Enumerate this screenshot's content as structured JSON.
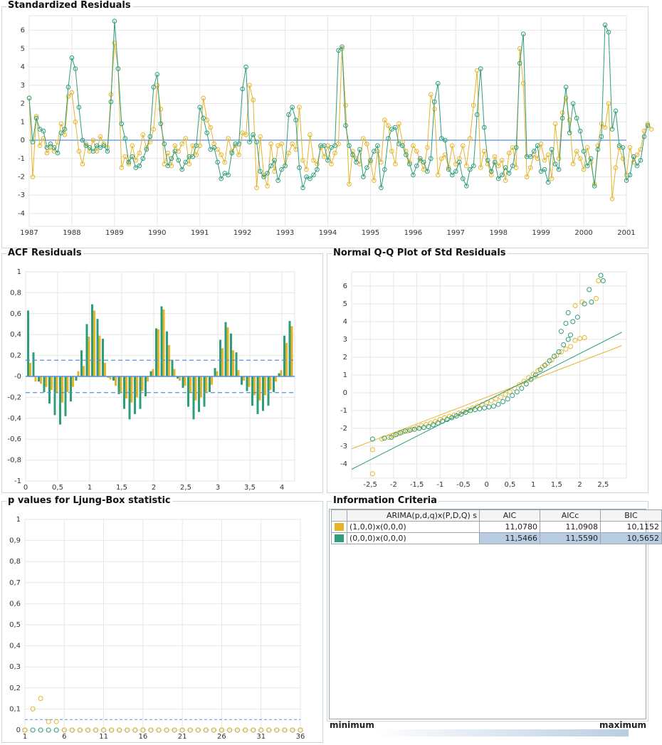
{
  "colors": {
    "model1": "#e6b32a",
    "model2": "#2e9d7a",
    "zero_line": "#5b8fd6",
    "band": "#5b8fd6",
    "highlight": "#b8cde2"
  },
  "chart_data": [
    {
      "type": "line",
      "title": "Standardized Residuals",
      "xlim": [
        1987,
        2001
      ],
      "ylim": [
        -4.7,
        6.8
      ],
      "x_ticks": [
        1987,
        1988,
        1989,
        1990,
        1991,
        1992,
        1993,
        1994,
        1995,
        1996,
        1997,
        1998,
        1999,
        2000,
        2001
      ],
      "y_ticks": [
        -4,
        -3,
        -2,
        -1,
        0,
        1,
        2,
        3,
        4,
        5,
        6
      ],
      "start": 1987.0,
      "step": 0.083333,
      "series": [
        {
          "values": [
            2.3,
            -2.0,
            1.3,
            -0.3,
            0.1,
            -0.7,
            -0.4,
            -0.6,
            -0.1,
            0.9,
            0.3,
            2.4,
            2.6,
            1.0,
            -0.6,
            -1.3,
            -0.2,
            -0.6,
            0.0,
            -0.6,
            0.2,
            -0.2,
            -0.4,
            2.5,
            5.3,
            3.9,
            -1.5,
            -0.9,
            -1.3,
            -0.3,
            -1.1,
            -0.7,
            0.3,
            -0.4,
            -0.1,
            0.6,
            3.0,
            1.7,
            -1.3,
            -0.7,
            -1.4,
            -0.3,
            -0.6,
            -0.2,
            0.1,
            -1.3,
            -0.3,
            -0.8,
            -0.3,
            2.3,
            1.1,
            0.7,
            -0.2,
            -0.5,
            -0.8,
            -1.2,
            0.1,
            -0.6,
            -0.3,
            -0.8,
            0.4,
            0.3,
            3.0,
            2.2,
            -2.6,
            0.2,
            -1.9,
            -2.5,
            -0.2,
            -1.7,
            -0.3,
            -0.2,
            -1.4,
            -0.7,
            -0.2,
            -0.5,
            1.8,
            -1.1,
            -1.6,
            0.3,
            -1.1,
            -1.3,
            -0.4,
            -0.9,
            -0.3,
            -1.3,
            -0.7,
            -0.2,
            5.0,
            1.9,
            -2.4,
            -0.6,
            -1.0,
            -1.3,
            0.1,
            -0.2,
            -1.2,
            -2.2,
            -0.6,
            -1.2,
            1.1,
            0.8,
            -0.6,
            -1.3,
            0.9,
            -0.1,
            -0.6,
            -1.2,
            -0.3,
            -0.6,
            -1.1,
            -1.6,
            -0.4,
            2.5,
            1.7,
            -1.9,
            -1.0,
            -0.8,
            -1.5,
            -0.3,
            -1.3,
            -1.0,
            -0.3,
            -1.4,
            0.1,
            1.9,
            3.8,
            -1.5,
            -0.6,
            -1.3,
            -1.9,
            -0.9,
            -1.4,
            -1.1,
            -2.2,
            -0.7,
            -0.4,
            -1.5,
            5.0,
            3.1,
            -2.0,
            -1.5,
            -0.8,
            -1.0,
            -0.2,
            -1.1,
            -0.8,
            -2.1,
            0.9,
            -1.0,
            1.5,
            2.3,
            1.1,
            -1.3,
            -0.6,
            -1.0,
            -1.6,
            -0.4,
            -1.2,
            -2.4,
            -0.3,
            0.9,
            0.7,
            2.0,
            -3.2,
            -1.5,
            -0.4,
            -1.0,
            -1.9,
            -0.4,
            -1.2,
            -0.8,
            -0.5,
            0.5,
            0.9,
            0.6
          ]
        },
        {
          "values": [
            2.3,
            -0.1,
            1.2,
            0.6,
            0.5,
            -0.4,
            -0.2,
            -0.4,
            -0.7,
            0.4,
            0.6,
            2.9,
            4.5,
            3.9,
            1.8,
            0.0,
            -0.3,
            -0.4,
            -0.6,
            -0.3,
            -0.4,
            -0.3,
            -0.6,
            2.1,
            6.5,
            3.9,
            0.9,
            0.1,
            -1.2,
            -0.9,
            -1.5,
            -1.4,
            -1.0,
            -0.5,
            0.2,
            2.9,
            3.6,
            0.9,
            -0.2,
            -1.4,
            -1.0,
            -0.6,
            -1.1,
            -1.6,
            -1.2,
            -0.9,
            -0.9,
            -0.3,
            1.8,
            1.2,
            0.4,
            -0.5,
            -0.4,
            -1.2,
            -2.1,
            -1.8,
            -1.9,
            -0.7,
            -0.2,
            -0.2,
            2.8,
            4.0,
            -0.1,
            0.3,
            -0.1,
            -1.7,
            -2.0,
            -1.8,
            -1.4,
            -1.1,
            -2.2,
            -1.6,
            -1.4,
            1.4,
            1.8,
            1.1,
            -1.5,
            -2.6,
            -2.0,
            -2.1,
            -1.9,
            -1.6,
            -0.3,
            -0.3,
            -1.1,
            -0.4,
            -0.3,
            4.9,
            5.1,
            0.8,
            -0.3,
            -0.8,
            -1.2,
            -0.5,
            -2.0,
            -1.5,
            -1.1,
            -0.6,
            -0.3,
            -2.6,
            -1.6,
            0.1,
            0.6,
            0.7,
            -0.2,
            -0.3,
            -0.8,
            -1.3,
            -1.9,
            -1.4,
            -1.0,
            -1.2,
            -1.7,
            -1.0,
            2.1,
            3.1,
            0.1,
            0.0,
            -1.6,
            -1.9,
            -1.7,
            -1.2,
            -2.1,
            -2.5,
            -1.6,
            -1.4,
            1.4,
            3.9,
            0.7,
            -1.1,
            -1.7,
            -1.2,
            -2.1,
            -1.9,
            -1.5,
            -1.8,
            -1.4,
            -0.4,
            4.2,
            5.8,
            -0.9,
            -0.9,
            -0.6,
            -0.3,
            -1.7,
            -1.6,
            -2.3,
            -0.5,
            -1.3,
            -1.6,
            1.2,
            2.9,
            0.4,
            2.0,
            1.2,
            0.5,
            -0.6,
            -1.4,
            -1.0,
            -2.5,
            -0.5,
            0.2,
            6.3,
            5.9,
            0.6,
            1.6,
            -0.3,
            -0.4,
            -2.2,
            -1.9,
            -0.9,
            -1.4,
            -1.1,
            0.2,
            0.8
          ]
        }
      ]
    },
    {
      "type": "bar",
      "title": "ACF Residuals",
      "xlim": [
        0,
        4.2
      ],
      "ylim": [
        -1,
        1
      ],
      "x_ticks": [
        "0",
        "0,5",
        "1",
        "1,5",
        "2",
        "2,5",
        "3",
        "3,5",
        "4"
      ],
      "y_ticks": [
        "-1",
        "-0,8",
        "-0,6",
        "-0,4",
        "-0,2",
        "-0",
        "0,2",
        "0,4",
        "0,6",
        "0,8",
        "1"
      ],
      "confidence_band": 0.155,
      "lag_step": 0.083333,
      "series": [
        {
          "values": [
            0.63,
            0.23,
            -0.05,
            -0.15,
            -0.26,
            -0.37,
            -0.46,
            -0.38,
            -0.24,
            -0.04,
            0.25,
            0.5,
            0.69,
            0.55,
            0.36,
            -0.01,
            -0.04,
            -0.17,
            -0.31,
            -0.41,
            -0.36,
            -0.31,
            -0.19,
            0.05,
            0.46,
            0.67,
            0.43,
            0.16,
            -0.02,
            -0.11,
            -0.29,
            -0.41,
            -0.34,
            -0.29,
            -0.15,
            0.08,
            0.35,
            0.52,
            0.41,
            0.23,
            -0.08,
            -0.14,
            -0.28,
            -0.36,
            -0.33,
            -0.28,
            -0.15,
            0.03,
            0.39,
            0.53
          ]
        },
        {
          "values": [
            0.13,
            -0.05,
            -0.07,
            -0.1,
            -0.13,
            -0.16,
            -0.25,
            -0.15,
            -0.1,
            0.05,
            0.1,
            0.38,
            0.63,
            0.39,
            0.13,
            -0.03,
            -0.09,
            -0.15,
            -0.21,
            -0.25,
            -0.2,
            -0.14,
            -0.05,
            0.07,
            0.45,
            0.64,
            0.3,
            0.07,
            -0.04,
            -0.09,
            -0.16,
            -0.23,
            -0.2,
            -0.15,
            -0.08,
            0.05,
            0.27,
            0.47,
            0.25,
            0.06,
            -0.04,
            -0.1,
            -0.18,
            -0.23,
            -0.18,
            -0.13,
            -0.05,
            0.06,
            0.32,
            0.48
          ]
        }
      ]
    },
    {
      "type": "scatter",
      "title": "Normal Q-Q Plot of Std Residuals",
      "xlim": [
        -2.9,
        3.0
      ],
      "ylim": [
        -4.8,
        6.8
      ],
      "x_ticks": [
        "-2,5",
        "-2",
        "-1,5",
        "-1",
        "-0,5",
        "0",
        "0,5",
        "1",
        "1,5",
        "2",
        "2,5"
      ],
      "y_ticks": [
        "-4",
        "-3",
        "-2",
        "-1",
        "0",
        "1",
        "2",
        "3",
        "4",
        "5",
        "6"
      ],
      "series": [
        {
          "line": {
            "x1": -2.9,
            "y1": -3.15,
            "x2": 2.9,
            "y2": 2.65
          },
          "points": [
            [
              -2.45,
              -4.55
            ],
            [
              -2.45,
              -3.2
            ],
            [
              -2.25,
              -2.6
            ],
            [
              -2.1,
              -2.5
            ],
            [
              -2.0,
              -2.4
            ],
            [
              -1.9,
              -2.3
            ],
            [
              -1.8,
              -2.2
            ],
            [
              -1.7,
              -2.15
            ],
            [
              -1.6,
              -2.05
            ],
            [
              -1.5,
              -1.95
            ],
            [
              -1.4,
              -1.85
            ],
            [
              -1.3,
              -1.78
            ],
            [
              -1.2,
              -1.7
            ],
            [
              -1.1,
              -1.6
            ],
            [
              -1.0,
              -1.5
            ],
            [
              -0.9,
              -1.4
            ],
            [
              -0.8,
              -1.32
            ],
            [
              -0.7,
              -1.25
            ],
            [
              -0.6,
              -1.15
            ],
            [
              -0.5,
              -1.05
            ],
            [
              -0.4,
              -0.95
            ],
            [
              -0.3,
              -0.85
            ],
            [
              -0.2,
              -0.75
            ],
            [
              -0.1,
              -0.65
            ],
            [
              0.0,
              -0.55
            ],
            [
              0.1,
              -0.45
            ],
            [
              0.2,
              -0.35
            ],
            [
              0.3,
              -0.25
            ],
            [
              0.4,
              -0.1
            ],
            [
              0.5,
              0.05
            ],
            [
              0.6,
              0.25
            ],
            [
              0.7,
              0.45
            ],
            [
              0.8,
              0.65
            ],
            [
              0.9,
              0.85
            ],
            [
              1.0,
              1.05
            ],
            [
              1.1,
              1.25
            ],
            [
              1.2,
              1.45
            ],
            [
              1.3,
              1.65
            ],
            [
              1.4,
              1.85
            ],
            [
              1.5,
              2.1
            ],
            [
              1.6,
              2.3
            ],
            [
              1.7,
              2.45
            ],
            [
              1.8,
              2.6
            ],
            [
              1.9,
              2.95
            ],
            [
              2.0,
              3.05
            ],
            [
              2.1,
              3.1
            ],
            [
              1.9,
              4.9
            ],
            [
              2.05,
              5.1
            ],
            [
              2.35,
              5.3
            ],
            [
              2.4,
              6.3
            ]
          ]
        },
        {
          "line": {
            "x1": -2.9,
            "y1": -4.3,
            "x2": 2.9,
            "y2": 3.4
          },
          "points": [
            [
              -2.45,
              -2.6
            ],
            [
              -2.2,
              -2.55
            ],
            [
              -2.05,
              -2.5
            ],
            [
              -1.95,
              -2.35
            ],
            [
              -1.85,
              -2.25
            ],
            [
              -1.75,
              -2.15
            ],
            [
              -1.65,
              -2.1
            ],
            [
              -1.55,
              -2.05
            ],
            [
              -1.45,
              -2.0
            ],
            [
              -1.35,
              -1.95
            ],
            [
              -1.25,
              -1.9
            ],
            [
              -1.15,
              -1.8
            ],
            [
              -1.05,
              -1.7
            ],
            [
              -0.95,
              -1.6
            ],
            [
              -0.85,
              -1.5
            ],
            [
              -0.75,
              -1.4
            ],
            [
              -0.65,
              -1.3
            ],
            [
              -0.55,
              -1.2
            ],
            [
              -0.45,
              -1.1
            ],
            [
              -0.35,
              -1.0
            ],
            [
              -0.25,
              -0.95
            ],
            [
              -0.15,
              -0.9
            ],
            [
              -0.05,
              -0.85
            ],
            [
              0.05,
              -0.8
            ],
            [
              0.15,
              -0.75
            ],
            [
              0.25,
              -0.65
            ],
            [
              0.35,
              -0.5
            ],
            [
              0.45,
              -0.35
            ],
            [
              0.55,
              -0.15
            ],
            [
              0.65,
              0.05
            ],
            [
              0.75,
              0.25
            ],
            [
              0.85,
              0.5
            ],
            [
              0.95,
              0.75
            ],
            [
              1.05,
              1.0
            ],
            [
              1.15,
              1.3
            ],
            [
              1.25,
              1.55
            ],
            [
              1.35,
              1.8
            ],
            [
              1.45,
              2.05
            ],
            [
              1.55,
              2.3
            ],
            [
              1.65,
              2.7
            ],
            [
              1.75,
              3.0
            ],
            [
              1.8,
              3.25
            ],
            [
              1.6,
              3.45
            ],
            [
              1.7,
              3.9
            ],
            [
              1.85,
              4.0
            ],
            [
              1.95,
              4.25
            ],
            [
              1.75,
              4.5
            ],
            [
              2.1,
              5.0
            ],
            [
              2.25,
              5.1
            ],
            [
              2.2,
              5.8
            ],
            [
              2.5,
              6.3
            ],
            [
              2.45,
              6.6
            ]
          ]
        }
      ]
    },
    {
      "type": "scatter",
      "title": "p values for Ljung-Box statistic",
      "xlim": [
        1,
        36
      ],
      "ylim": [
        0,
        1
      ],
      "x_ticks": [
        "1",
        "6",
        "11",
        "16",
        "21",
        "26",
        "31",
        "36"
      ],
      "y_ticks": [
        "0",
        "0,1",
        "0,2",
        "0,3",
        "0,4",
        "0,5",
        "0,6",
        "0,7",
        "0,8",
        "0,9",
        "1"
      ],
      "significance": 0.05,
      "series": [
        {
          "values": [
            0.0,
            0.1,
            0.15,
            0.04,
            0.04,
            0.0,
            0.0,
            0.0,
            0.0,
            0.0,
            0.0,
            0.0,
            0.0,
            0.0,
            0.0,
            0.0,
            0.0,
            0.0,
            0.0,
            0.0,
            0.0,
            0.0,
            0.0,
            0.0,
            0.0,
            0.0,
            0.0,
            0.0,
            0.0,
            0.0,
            0.0,
            0.0,
            0.0,
            0.0,
            0.0,
            0.0
          ]
        },
        {
          "values": [
            0.0,
            0.0,
            0.0,
            0.0,
            0.0,
            0.0,
            0.0,
            0.0,
            0.0,
            0.0,
            0.0,
            0.0,
            0.0,
            0.0,
            0.0,
            0.0,
            0.0,
            0.0,
            0.0,
            0.0,
            0.0,
            0.0,
            0.0,
            0.0,
            0.0,
            0.0,
            0.0,
            0.0,
            0.0,
            0.0,
            0.0,
            0.0,
            0.0,
            0.0,
            0.0,
            0.0
          ]
        }
      ]
    }
  ],
  "info_criteria": {
    "title": "Information Criteria",
    "headers": [
      "ARIMA(p,d,q)x(P,D,Q)  s",
      "AIC",
      "AICc",
      "BIC"
    ],
    "rows": [
      {
        "label": "(1,0,0)x(0,0,0)",
        "aic": "11,0780",
        "aicc": "11,0908",
        "bic": "10,1152"
      },
      {
        "label": "(0,0,0)x(0,0,0)",
        "aic": "11,5466",
        "aicc": "11,5590",
        "bic": "10,5652"
      }
    ],
    "scale_min": "minimum",
    "scale_max": "maximum"
  }
}
